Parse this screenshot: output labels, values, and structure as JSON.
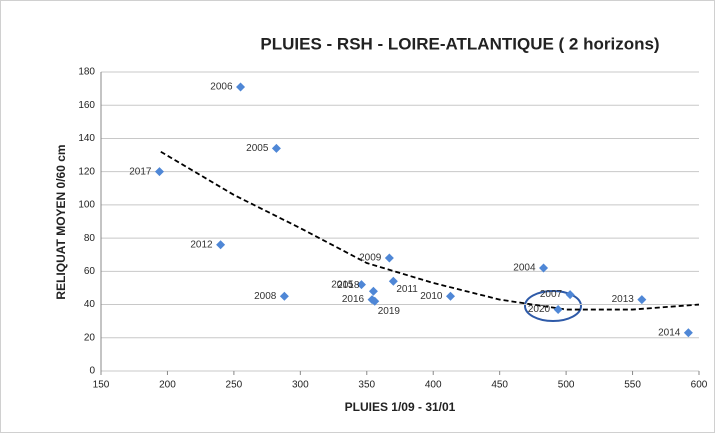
{
  "chart_data": {
    "type": "scatter",
    "title": "PLUIES - RSH - LOIRE-ATLANTIQUE ( 2 horizons)",
    "x_label": "PLUIES 1/09 - 31/01",
    "y_label": "RELIQUAT MOYEN 0/60 cm",
    "series": [
      {
        "color": "#4f87d6",
        "labels": [
          "2006",
          "2005",
          "2017",
          "2012",
          "2008",
          "2015",
          "2018",
          "2016",
          "2019",
          "2011",
          "2009",
          "2010",
          "2004",
          "2007",
          "2020",
          "2013",
          "2014"
        ],
        "x": [
          255,
          282,
          194,
          240,
          288,
          346,
          355,
          354,
          356,
          370,
          367,
          413,
          483,
          503,
          494,
          557,
          592
        ],
        "values": [
          171,
          134,
          120,
          76,
          45,
          52,
          48,
          43,
          42,
          54,
          68,
          45,
          62,
          46,
          37,
          43,
          23
        ]
      }
    ],
    "trendline": {
      "x": [
        195,
        250,
        300,
        350,
        400,
        450,
        500,
        550,
        600
      ],
      "values": [
        132,
        106,
        86,
        65,
        53,
        43,
        37,
        37,
        40
      ],
      "color": "#000000"
    },
    "xlim": [
      150,
      600
    ],
    "xticks": [
      150,
      200,
      250,
      300,
      350,
      400,
      450,
      500,
      550,
      600
    ],
    "ylim": [
      0,
      180
    ],
    "yticks": [
      0,
      20,
      40,
      60,
      80,
      100,
      120,
      140,
      160,
      180
    ],
    "grid": true
  }
}
